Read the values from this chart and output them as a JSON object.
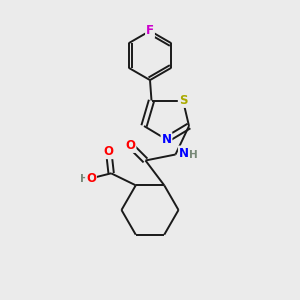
{
  "background_color": "#ebebeb",
  "bond_color": "#1a1a1a",
  "atom_colors": {
    "F": "#cc00cc",
    "N": "#0000ff",
    "O": "#ff0000",
    "S": "#aaaa00",
    "H": "#778877",
    "C": "#1a1a1a"
  },
  "figsize": [
    3.0,
    3.0
  ],
  "dpi": 100,
  "lw": 1.4,
  "font_size": 8.5
}
